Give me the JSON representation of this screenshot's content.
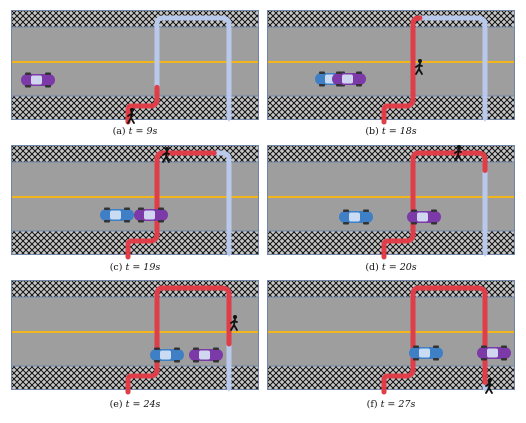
{
  "panels": [
    {
      "label": "(a)",
      "t_text": "t = 9s",
      "pedestrian": {
        "x": 120,
        "y": 109
      },
      "car_blue": null,
      "car_purple": {
        "x": 27,
        "y": 70
      },
      "trail_progress": 0.2
    },
    {
      "label": "(b)",
      "t_text": "t = 18s",
      "pedestrian": {
        "x": 152,
        "y": 60
      },
      "car_blue": {
        "x": 65,
        "y": 69
      },
      "car_purple": {
        "x": 82,
        "y": 69
      },
      "trail_progress": 0.45
    },
    {
      "label": "(c)",
      "t_text": "t = 19s",
      "pedestrian": {
        "x": 155,
        "y": 13
      },
      "car_blue": {
        "x": 106,
        "y": 70
      },
      "car_purple": {
        "x": 140,
        "y": 70
      },
      "trail_progress": 0.62
    },
    {
      "label": "(d)",
      "t_text": "t = 20s",
      "pedestrian": {
        "x": 191,
        "y": 11
      },
      "car_blue": {
        "x": 89,
        "y": 72
      },
      "car_purple": {
        "x": 157,
        "y": 72
      },
      "trail_progress": 0.72
    },
    {
      "label": "(e)",
      "t_text": "t = 24s",
      "pedestrian": {
        "x": 223,
        "y": 46
      },
      "car_blue": {
        "x": 156,
        "y": 75
      },
      "car_purple": {
        "x": 195,
        "y": 75
      },
      "trail_progress": 0.85
    },
    {
      "label": "(f)",
      "t_text": "t = 27s",
      "pedestrian": {
        "x": 222,
        "y": 109
      },
      "car_blue": {
        "x": 159,
        "y": 73
      },
      "car_purple": {
        "x": 227,
        "y": 73
      },
      "trail_progress": 0.98
    }
  ],
  "colors": {
    "road": "#9e9e9e",
    "sidewalk": "#bdbdbd",
    "lane_line": "#f2b51c",
    "border": "#6f86a8",
    "trail_red": "#e2323a",
    "trail_blue": "#b9c9ec",
    "car_blue": "#3f7fc6",
    "car_purple": "#7b3aa8"
  }
}
